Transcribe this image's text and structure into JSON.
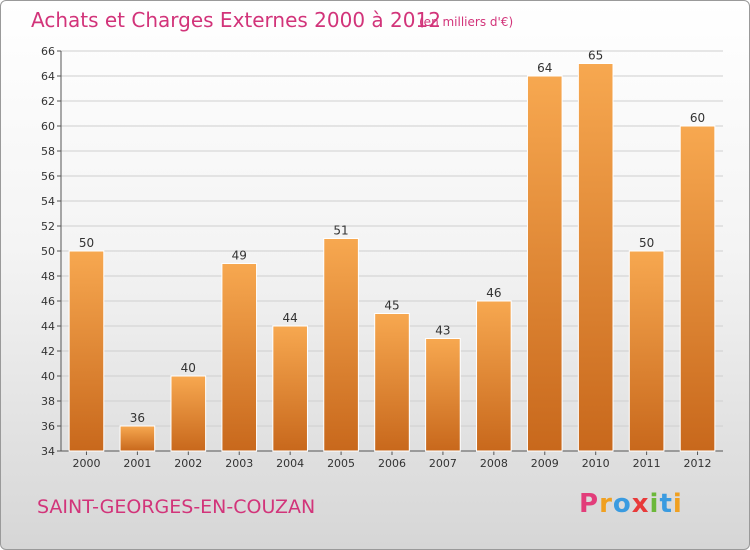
{
  "chart_data": {
    "type": "bar",
    "title": "Achats et Charges Externes 2000 à 2012",
    "subtitle": "(en milliers d'€)",
    "categories": [
      "2000",
      "2001",
      "2002",
      "2003",
      "2004",
      "2005",
      "2006",
      "2007",
      "2008",
      "2009",
      "2010",
      "2011",
      "2012"
    ],
    "values": [
      50,
      36,
      40,
      49,
      44,
      51,
      45,
      43,
      46,
      64,
      65,
      50,
      60
    ],
    "ylim": [
      34,
      66
    ],
    "yticks": [
      34,
      36,
      38,
      40,
      42,
      44,
      46,
      48,
      50,
      52,
      54,
      56,
      58,
      60,
      62,
      64,
      66
    ],
    "grid": true,
    "legend": "none",
    "xlabel": "",
    "ylabel": "",
    "colors": {
      "bar_top": "#f7a850",
      "bar_bottom": "#c8681c",
      "title": "#d2347a"
    }
  },
  "footer": {
    "commune": "SAINT-GEORGES-EN-COUZAN"
  },
  "brand": {
    "letters": [
      {
        "ch": "P",
        "color": "#e23d7a"
      },
      {
        "ch": "r",
        "color": "#f0a020"
      },
      {
        "ch": "o",
        "color": "#3a9be0"
      },
      {
        "ch": "x",
        "color": "#e83a3a"
      },
      {
        "ch": "i",
        "color": "#6cb83a"
      },
      {
        "ch": "t",
        "color": "#3a9be0"
      },
      {
        "ch": "i",
        "color": "#f0a020"
      }
    ]
  }
}
